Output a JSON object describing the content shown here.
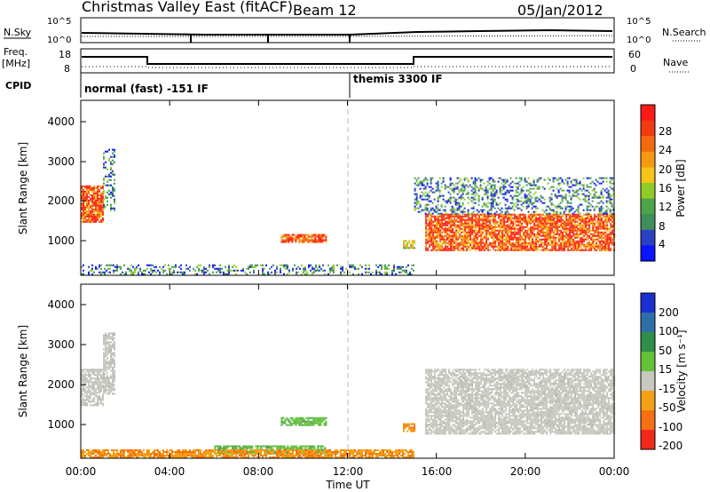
{
  "header": {
    "title": "Christmas Valley East (fitACF)",
    "beam": "Beam 12",
    "date": "05/Jan/2012"
  },
  "noise_panel": {
    "left_label": "N.Sky",
    "left_ticks": [
      "10^5",
      "10^0"
    ],
    "right_label": "N.Search",
    "right_ticks": [
      "10^5",
      "10^0"
    ]
  },
  "freq_panel": {
    "left_label_1": "Freq.",
    "left_label_2": "[MHz]",
    "left_ticks": [
      "18",
      "8"
    ],
    "right_label": "Nave",
    "right_ticks": [
      "60",
      "0"
    ]
  },
  "cpid_panel": {
    "label": "CPID",
    "modes": [
      "normal (fast) -151 IF",
      "themis 3300 IF"
    ]
  },
  "power_panel": {
    "ylabel": "Slant Range [km]",
    "yticks": [
      "1000",
      "2000",
      "3000",
      "4000"
    ],
    "colorbar_label": "Power [dB]",
    "colorbar_ticks": [
      "4",
      "8",
      "12",
      "16",
      "20",
      "24",
      "28"
    ],
    "colorbar_colors": [
      "#0a14ff",
      "#2b3fc2",
      "#3f8e5b",
      "#4fa34a",
      "#8fcc2a",
      "#f5c518",
      "#f59a10",
      "#f36a10",
      "#f23a10",
      "#ff1a1a"
    ]
  },
  "velocity_panel": {
    "ylabel": "Slant Range [km]",
    "yticks": [
      "1000",
      "2000",
      "3000",
      "4000"
    ],
    "colorbar_label": "Velocity [m s⁻¹]",
    "colorbar_ticks": [
      "200",
      "100",
      "50",
      "15",
      "-15",
      "-50",
      "-100",
      "-200"
    ],
    "colorbar_colors": [
      "#1c2fd0",
      "#2f6fa8",
      "#2f8e4a",
      "#63c23a",
      "#c8c8c0",
      "#f5a014",
      "#f57014",
      "#f02a1a"
    ]
  },
  "xaxis": {
    "xlabel": "Time UT",
    "ticks": [
      "00:00",
      "04:00",
      "08:00",
      "12:00",
      "16:00",
      "20:00",
      "00:00"
    ]
  },
  "chart_data": [
    {
      "type": "heatmap",
      "name": "power",
      "x_range_hours": [
        0,
        24
      ],
      "y_range_km": [
        180,
        4500
      ],
      "regions": [
        {
          "t": [
            0.0,
            1.0
          ],
          "r": [
            1500,
            2400
          ],
          "level": "high"
        },
        {
          "t": [
            1.0,
            1.5
          ],
          "r": [
            1800,
            3300
          ],
          "level": "low"
        },
        {
          "t": [
            9.0,
            11.0
          ],
          "r": [
            1000,
            1200
          ],
          "level": "high"
        },
        {
          "t": [
            14.5,
            15.0
          ],
          "r": [
            850,
            1050
          ],
          "level": "mid"
        },
        {
          "t": [
            15.5,
            24.0
          ],
          "r": [
            800,
            1700
          ],
          "level": "high"
        },
        {
          "t": [
            15.0,
            24.0
          ],
          "r": [
            1700,
            2600
          ],
          "level": "low"
        },
        {
          "t": [
            0.0,
            15.0
          ],
          "r": [
            200,
            450
          ],
          "level": "low"
        }
      ]
    },
    {
      "type": "heatmap",
      "name": "velocity",
      "x_range_hours": [
        0,
        24
      ],
      "y_range_km": [
        180,
        4500
      ],
      "regions": [
        {
          "t": [
            0.0,
            1.0
          ],
          "r": [
            1500,
            2400
          ],
          "v": "0"
        },
        {
          "t": [
            1.0,
            1.5
          ],
          "r": [
            1800,
            3300
          ],
          "v": "0"
        },
        {
          "t": [
            9.0,
            11.0
          ],
          "r": [
            1000,
            1200
          ],
          "v": "+30"
        },
        {
          "t": [
            14.5,
            15.0
          ],
          "r": [
            850,
            1050
          ],
          "v": "-60"
        },
        {
          "t": [
            15.5,
            24.0
          ],
          "r": [
            800,
            2400
          ],
          "v": "0"
        },
        {
          "t": [
            6.0,
            11.0
          ],
          "r": [
            300,
            500
          ],
          "v": "+30"
        },
        {
          "t": [
            0.0,
            15.0
          ],
          "r": [
            180,
            400
          ],
          "v": "-30"
        }
      ]
    }
  ]
}
